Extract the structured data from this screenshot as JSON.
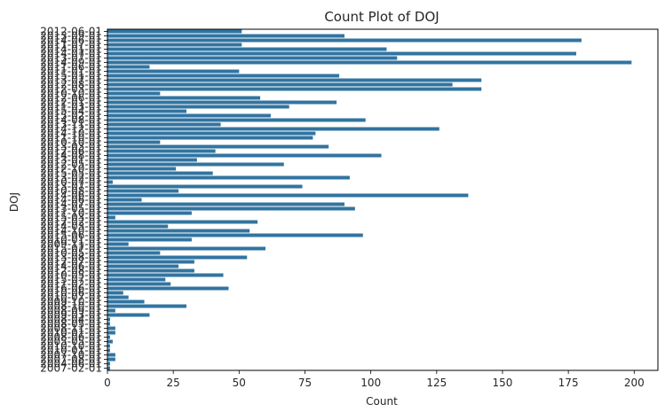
{
  "chart_data": {
    "type": "bar",
    "orientation": "horizontal",
    "title": "Count Plot of DOJ",
    "xlabel": "Count",
    "ylabel": "DOJ",
    "xlim": [
      0,
      209
    ],
    "xticks": [
      0,
      25,
      50,
      75,
      100,
      125,
      150,
      175,
      200
    ],
    "grid": false,
    "bar_color": "#3274a1",
    "categories": [
      "2012-06-01",
      "2013-09-01",
      "2014-06-01",
      "2011-07-01",
      "2014-01-01",
      "2014-07-01",
      "2013-07-01",
      "2014-09-01",
      "2011-06-01",
      "2011-01-01",
      "2015-01-01",
      "2013-07-01",
      "2012-08-01",
      "2012-03-01",
      "2010-10-01",
      "2012-06-01",
      "2012-01-01",
      "2011-03-01",
      "2015-04-01",
      "2015-02-01",
      "2014-08-01",
      "2013-11-01",
      "2014-12-01",
      "2014-10-01",
      "2011-10-01",
      "2010-10-01",
      "2013-03-01",
      "2012-06-01",
      "2014-08-01",
      "2013-01-01",
      "2012-05-01",
      "2012-10-01",
      "2015-05-01",
      "2013-02-01",
      "2010-07-01",
      "2013-07-01",
      "2010-08-01",
      "2014-06-01",
      "2014-06-01",
      "2014-07-01",
      "2013-05-01",
      "2011-10-01",
      "2015-03-01",
      "2012-02-01",
      "2014-03-01",
      "2014-10-01",
      "2015-06-01",
      "2010-01-01",
      "2009-11-01",
      "2015-07-01",
      "2010-05-01",
      "2013-08-01",
      "2012-07-01",
      "2014-06-01",
      "2012-08-01",
      "2010-05-01",
      "2015-07-01",
      "2011-02-01",
      "2016-06-01",
      "2010-06-01",
      "2010-07-01",
      "2009-10-01",
      "2008-10-01",
      "2008-09-01",
      "2009-03-01",
      "2008-04-01",
      "2008-05-01",
      "2008-11-01",
      "2010-01-01",
      "2008-06-01",
      "2005-05-01",
      "2010-10-01",
      "2010-01-01",
      "2007-10-01",
      "2007-08-01",
      "2004-06-01",
      "2007-02-01"
    ],
    "values": [
      51,
      90,
      180,
      51,
      106,
      178,
      110,
      199,
      16,
      50,
      88,
      142,
      131,
      142,
      20,
      58,
      87,
      69,
      30,
      62,
      98,
      43,
      126,
      79,
      78,
      20,
      84,
      41,
      104,
      34,
      67,
      26,
      40,
      92,
      2,
      74,
      27,
      137,
      13,
      90,
      94,
      32,
      3,
      57,
      23,
      54,
      97,
      32,
      8,
      60,
      20,
      53,
      33,
      27,
      33,
      44,
      22,
      24,
      46,
      6,
      8,
      14,
      30,
      3,
      16,
      1,
      1,
      3,
      3,
      1,
      2,
      1,
      1,
      3,
      3,
      1,
      1
    ]
  }
}
